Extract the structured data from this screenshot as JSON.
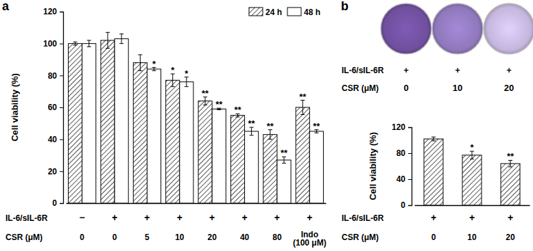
{
  "chart_data": [
    {
      "type": "bar",
      "panel_label": "a",
      "y_label": "Cell viability (%)",
      "categories": [
        "0",
        "0",
        "5",
        "10",
        "20",
        "40",
        "80",
        "Indo\n(100 μM)"
      ],
      "category_label": "CSR (μM)",
      "category_rows": [
        {
          "label": "IL-6/sIL-6R",
          "values": [
            "−",
            "+",
            "+",
            "+",
            "+",
            "+",
            "+",
            "+"
          ]
        }
      ],
      "series": [
        {
          "name": "24 h",
          "color": "#555555",
          "marker": "hatched",
          "values": [
            100,
            102,
            88,
            77,
            64,
            55,
            43,
            60
          ],
          "errors": [
            1,
            5,
            5,
            4,
            2.5,
            1,
            3,
            4.5
          ],
          "significance": [
            null,
            null,
            null,
            "*",
            "**",
            "**",
            "**",
            "**"
          ]
        },
        {
          "name": "48 h",
          "color": "#ffffff",
          "values": [
            100,
            103,
            84,
            76,
            59,
            45,
            27,
            45
          ],
          "errors": [
            2,
            3,
            1,
            3,
            0.5,
            2.5,
            2,
            1
          ],
          "significance": [
            null,
            null,
            "*",
            "*",
            "**",
            "**",
            "**",
            "**"
          ]
        }
      ],
      "ylim": [
        0,
        120
      ],
      "yticks": [
        0,
        20,
        40,
        60,
        80,
        100,
        120
      ],
      "legend": "top-right"
    },
    {
      "type": "bar",
      "panel_label": "b",
      "y_label": "Cell viability (%)",
      "plate_rows": [
        {
          "label": "IL-6/sIL-6R",
          "values": [
            "+",
            "+",
            "+"
          ]
        },
        {
          "label": "CSR (μM)",
          "values": [
            "0",
            "10",
            "20"
          ]
        }
      ],
      "categories": [
        "0",
        "10",
        "20"
      ],
      "category_label": "CSR (μM)",
      "category_rows": [
        {
          "label": "IL-6/sIL-6R",
          "values": [
            "+",
            "+",
            "+"
          ]
        }
      ],
      "series": [
        {
          "name": "Cell viability",
          "color": "#555555",
          "marker": "hatched",
          "values": [
            102,
            77,
            64
          ],
          "errors": [
            3,
            6,
            5
          ],
          "significance": [
            null,
            "*",
            "**"
          ]
        }
      ],
      "ylim": [
        0,
        120
      ],
      "yticks": [
        0,
        40,
        80,
        120
      ]
    }
  ]
}
